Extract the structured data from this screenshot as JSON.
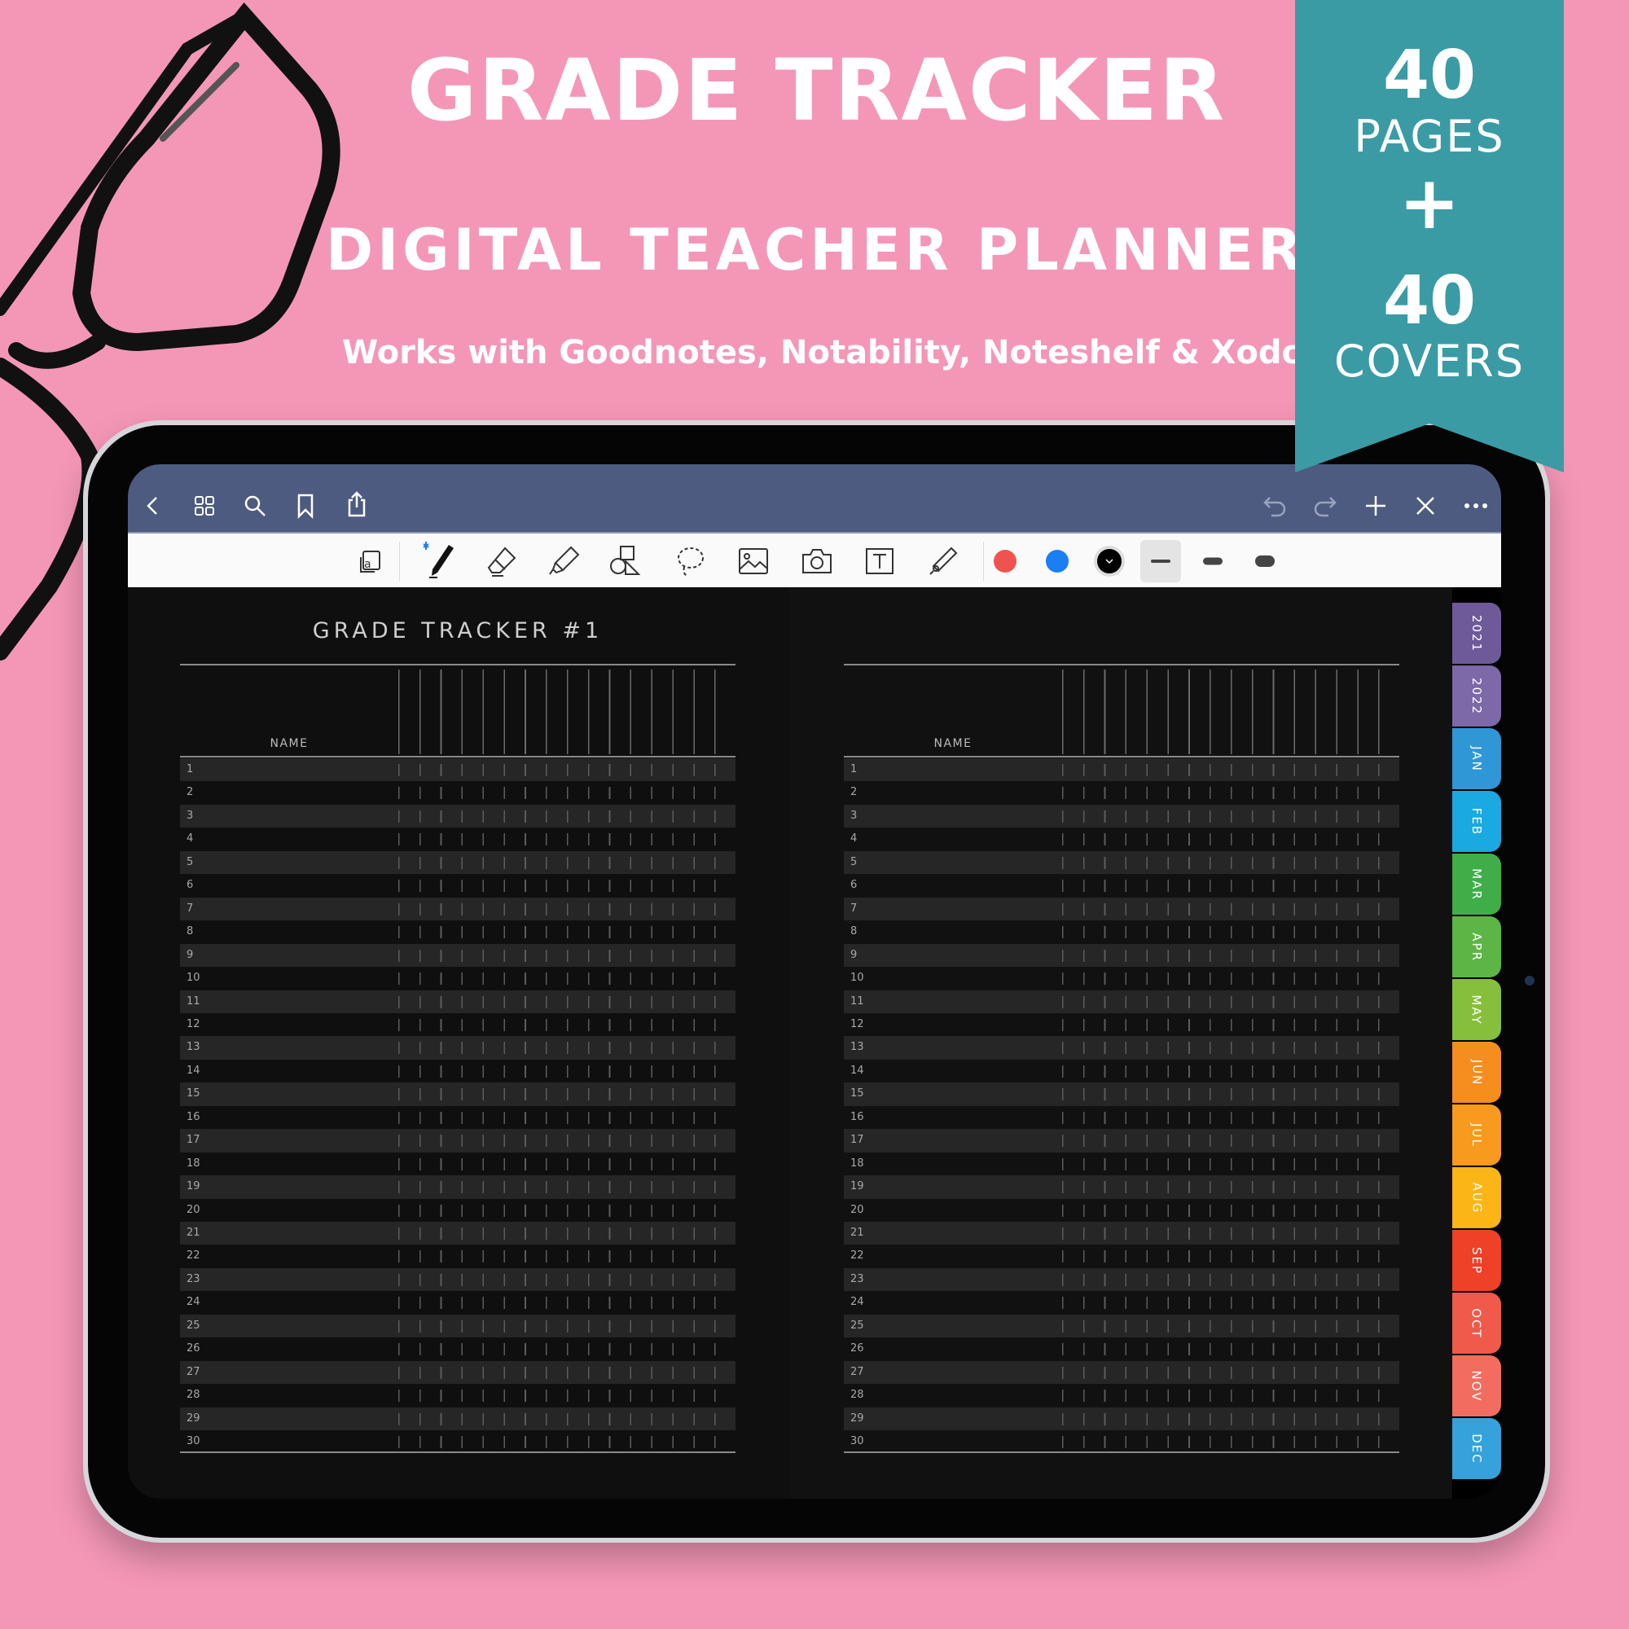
{
  "promo": {
    "title": "GRADE TRACKER",
    "subtitle": "DIGITAL TEACHER PLANNER",
    "compat": "Works with Goodnotes, Notability, Noteshelf & Xodo"
  },
  "ribbon": {
    "color": "#3a9ba5",
    "pages_count": "40",
    "pages_label": "PAGES",
    "plus": "+",
    "covers_count": "40",
    "covers_label": "COVERS"
  },
  "nav": {
    "left_icons": [
      "back-icon",
      "grid-icon",
      "search-icon",
      "bookmark-icon",
      "share-icon"
    ],
    "right_icons": [
      "undo-icon",
      "redo-icon",
      "add-icon",
      "close-icon",
      "more-icon"
    ],
    "color": "#4d5b80"
  },
  "toolbar": {
    "tools": [
      "read-mode-icon",
      "pen-icon",
      "eraser-icon",
      "highlighter-icon",
      "shapes-icon",
      "lasso-icon",
      "image-icon",
      "camera-icon",
      "text-icon",
      "laser-pointer-icon"
    ],
    "colors": [
      "#f0534f",
      "#1a7ef5",
      "#000000"
    ],
    "thickness": [
      "thin",
      "medium",
      "thick"
    ],
    "selected_thickness": "thin"
  },
  "left_page": {
    "title": "GRADE TRACKER #1",
    "name_header": "NAME"
  },
  "right_page": {
    "name_header": "NAME"
  },
  "rows": [
    "1",
    "2",
    "3",
    "4",
    "5",
    "6",
    "7",
    "8",
    "9",
    "10",
    "11",
    "12",
    "13",
    "14",
    "15",
    "16",
    "17",
    "18",
    "19",
    "20",
    "21",
    "22",
    "23",
    "24",
    "25",
    "26",
    "27",
    "28",
    "29",
    "30"
  ],
  "tabs": [
    {
      "label": "2021",
      "color": "#6f5a99"
    },
    {
      "label": "2022",
      "color": "#7d68a8"
    },
    {
      "label": "JAN",
      "color": "#2f97d6"
    },
    {
      "label": "FEB",
      "color": "#1aa9e0"
    },
    {
      "label": "MAR",
      "color": "#3fae49"
    },
    {
      "label": "APR",
      "color": "#5db546"
    },
    {
      "label": "MAY",
      "color": "#86bf3b"
    },
    {
      "label": "JUN",
      "color": "#f58d1f"
    },
    {
      "label": "JUL",
      "color": "#f79a1e"
    },
    {
      "label": "AUG",
      "color": "#fbb516"
    },
    {
      "label": "SEP",
      "color": "#ee4128"
    },
    {
      "label": "OCT",
      "color": "#f05a4a"
    },
    {
      "label": "NOV",
      "color": "#f26d5f"
    },
    {
      "label": "DEC",
      "color": "#35a2dc"
    }
  ]
}
